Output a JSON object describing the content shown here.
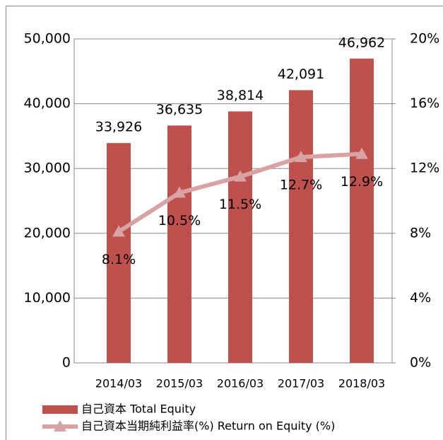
{
  "chart_data": {
    "type": "bar",
    "categories": [
      "2014/03",
      "2015/03",
      "2016/03",
      "2017/03",
      "2018/03"
    ],
    "series": [
      {
        "name": "自己資本 Total Equity",
        "type": "bar",
        "color": "#c0504d",
        "values": [
          33926,
          36635,
          38814,
          42091,
          46962
        ],
        "value_labels": [
          "33,926",
          "36,635",
          "38,814",
          "42,091",
          "46,962"
        ]
      },
      {
        "name": "自己資本当期純利益率(%) Return on Equity (%)",
        "type": "line",
        "axis": "y2",
        "color": "#d9a3a3",
        "values": [
          8.1,
          10.5,
          11.5,
          12.7,
          12.9
        ],
        "value_labels": [
          "8.1%",
          "10.5%",
          "11.5%",
          "12.7%",
          "12.9%"
        ]
      }
    ],
    "ylim": [
      0,
      50000
    ],
    "yticks": [
      0,
      {
        "value": 10000,
        "label": "10,000"
      },
      {
        "value": 20000,
        "label": "20,000"
      },
      {
        "value": 30000,
        "label": "30,000"
      },
      {
        "value": 40000,
        "label": "40,000"
      },
      {
        "value": 50000,
        "label": "50,000"
      }
    ],
    "y2lim": [
      0,
      20
    ],
    "y2ticks": [
      {
        "value": 0,
        "label": "0%"
      },
      {
        "value": 4,
        "label": "4%"
      },
      {
        "value": 8,
        "label": "8%"
      },
      {
        "value": 12,
        "label": "12%"
      },
      {
        "value": 16,
        "label": "16%"
      },
      {
        "value": 20,
        "label": "20%"
      }
    ],
    "grid": true
  }
}
